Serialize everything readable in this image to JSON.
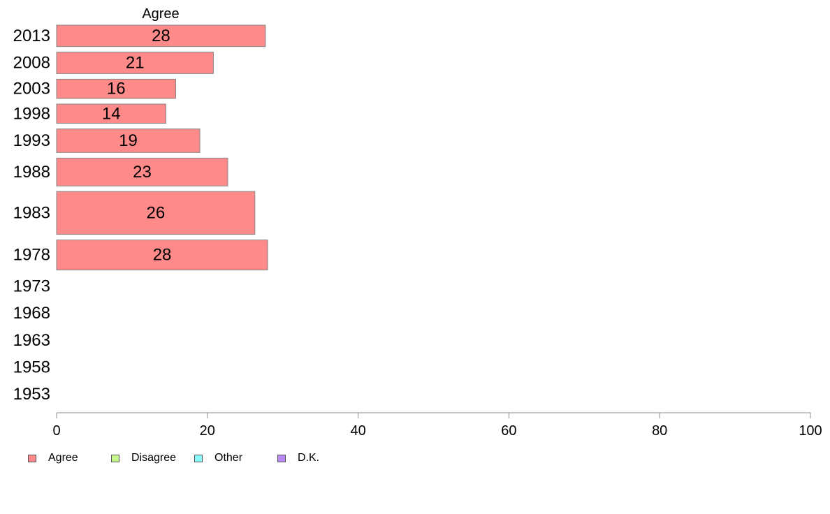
{
  "chart_data": {
    "type": "bar",
    "orientation": "horizontal",
    "title": "Agree",
    "categories": [
      "2013",
      "2008",
      "2003",
      "1998",
      "1993",
      "1988",
      "1983",
      "1978",
      "1973",
      "1968",
      "1963",
      "1958",
      "1953"
    ],
    "series": [
      {
        "name": "Agree",
        "values": [
          28,
          21,
          16,
          14,
          19,
          23,
          26,
          28,
          null,
          null,
          null,
          null,
          null
        ]
      }
    ],
    "bar_labels": [
      "28",
      "21",
      "16",
      "14",
      "19",
      "23",
      "26",
      "28",
      "",
      "",
      "",
      "",
      ""
    ],
    "exact_values": [
      27.7,
      20.8,
      15.8,
      14.5,
      19.0,
      22.7,
      26.3,
      28.0,
      null,
      null,
      null,
      null,
      null
    ],
    "relative_sample_size": [
      1.0,
      1.0,
      0.9,
      0.9,
      1.1,
      1.3,
      2.0,
      1.4,
      null,
      null,
      null,
      null,
      null
    ],
    "xlim": [
      0,
      100
    ],
    "xticks": [
      "0",
      "20",
      "40",
      "60",
      "80",
      "100"
    ],
    "xlabel": "",
    "ylabel": "",
    "grid": false,
    "legend_position": "bottom-left",
    "colors": {
      "Agree": "#ff8a8a",
      "Disagree": "#c6f78a",
      "Other": "#8af8f6",
      "D.K.": "#b98af5",
      "bar_border": "#888888",
      "axis": "#888888"
    }
  },
  "legend": [
    {
      "label": "Agree",
      "color": "#ff8a8a",
      "icon": "swatch-icon"
    },
    {
      "label": "Disagree",
      "color": "#c6f78a",
      "icon": "swatch-icon"
    },
    {
      "label": "Other",
      "color": "#8af8f6",
      "icon": "swatch-icon"
    },
    {
      "label": "D.K.",
      "color": "#b98af5",
      "icon": "swatch-icon"
    }
  ]
}
